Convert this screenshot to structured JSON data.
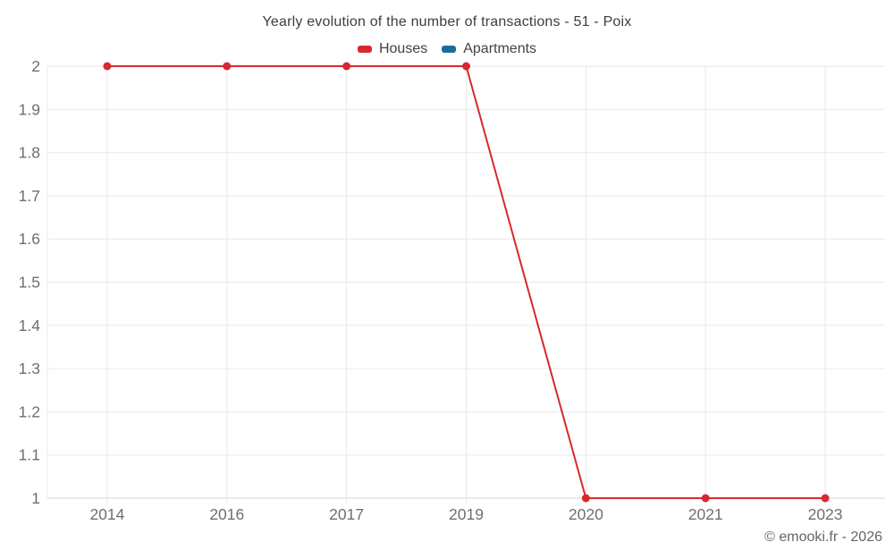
{
  "title": "Yearly evolution of the number of transactions - 51 - Poix",
  "footer": "© emooki.fr - 2026",
  "colors": {
    "houses": "#d8282d",
    "apartments": "#176e9b",
    "grid": "#e9e9e9",
    "axis": "#d6d6d6",
    "tick_text": "#6f6f6f",
    "title_text": "#3d3d3d",
    "legend_text": "#424242",
    "footer_text": "#666666"
  },
  "chart_data": {
    "type": "line",
    "title": "Yearly evolution of the number of transactions - 51 - Poix",
    "categories": [
      "2014",
      "2016",
      "2017",
      "2019",
      "2020",
      "2021",
      "2023"
    ],
    "series": [
      {
        "name": "Houses",
        "color": "#d8282d",
        "values": [
          2,
          2,
          2,
          2,
          1,
          1,
          1
        ]
      },
      {
        "name": "Apartments",
        "color": "#176e9b",
        "values": []
      }
    ],
    "xlabel": "",
    "ylabel": "",
    "ylim": [
      1,
      2
    ],
    "yticks": [
      1,
      1.1,
      1.2,
      1.3,
      1.4,
      1.5,
      1.6,
      1.7,
      1.8,
      1.9,
      2
    ],
    "ytick_labels": [
      "1",
      "1.1",
      "1.2",
      "1.3",
      "1.4",
      "1.5",
      "1.6",
      "1.7",
      "1.8",
      "1.9",
      "2"
    ],
    "grid": true,
    "legend_position": "top"
  }
}
